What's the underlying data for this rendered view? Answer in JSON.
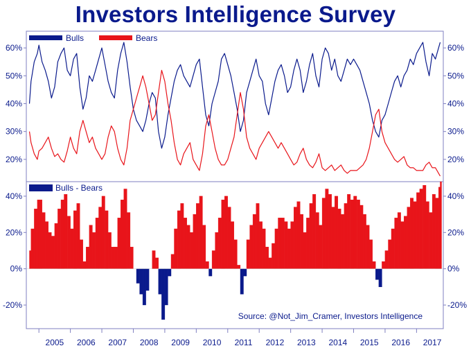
{
  "title": "Investors Intelligence Survey",
  "source": "Source: @Not_Jim_Cramer, Investors Intelligence",
  "colors": {
    "title": "#0a1a8c",
    "bulls": "#0a1a8c",
    "bears": "#e8141a",
    "spread_positive": "#e8141a",
    "spread_negative": "#0a1a8c",
    "frame": "#7f7fc0",
    "tick_text": "#0a1a8c"
  },
  "chart_data": [
    {
      "type": "line",
      "legend": "top-left",
      "x_tick_labels": [
        "2005",
        "2006",
        "2007",
        "2008",
        "2009",
        "2010",
        "2011",
        "2012",
        "2013",
        "2014",
        "2015",
        "2016",
        "2017"
      ],
      "xlim": [
        2004.6,
        2017.85
      ],
      "y_tick_labels": [
        "20%",
        "30%",
        "40%",
        "50%",
        "60%"
      ],
      "ylim": [
        12,
        66
      ],
      "series": [
        {
          "name": "Bulls",
          "x": [
            2004.7,
            2004.75,
            2004.85,
            2004.95,
            2005.0,
            2005.1,
            2005.2,
            2005.3,
            2005.4,
            2005.5,
            2005.6,
            2005.7,
            2005.8,
            2005.9,
            2006.0,
            2006.1,
            2006.2,
            2006.3,
            2006.4,
            2006.5,
            2006.6,
            2006.7,
            2006.8,
            2006.9,
            2007.0,
            2007.1,
            2007.2,
            2007.3,
            2007.4,
            2007.5,
            2007.6,
            2007.7,
            2007.8,
            2007.9,
            2008.0,
            2008.1,
            2008.2,
            2008.3,
            2008.4,
            2008.5,
            2008.6,
            2008.7,
            2008.8,
            2008.9,
            2009.0,
            2009.1,
            2009.2,
            2009.3,
            2009.4,
            2009.5,
            2009.6,
            2009.7,
            2009.8,
            2009.9,
            2010.0,
            2010.1,
            2010.2,
            2010.3,
            2010.4,
            2010.5,
            2010.6,
            2010.7,
            2010.8,
            2010.9,
            2011.0,
            2011.1,
            2011.2,
            2011.3,
            2011.4,
            2011.5,
            2011.6,
            2011.7,
            2011.8,
            2011.9,
            2012.0,
            2012.1,
            2012.2,
            2012.3,
            2012.4,
            2012.5,
            2012.6,
            2012.7,
            2012.8,
            2012.9,
            2013.0,
            2013.1,
            2013.2,
            2013.3,
            2013.4,
            2013.5,
            2013.6,
            2013.7,
            2013.8,
            2013.9,
            2014.0,
            2014.1,
            2014.2,
            2014.3,
            2014.4,
            2014.5,
            2014.6,
            2014.7,
            2014.8,
            2014.9,
            2015.0,
            2015.1,
            2015.2,
            2015.3,
            2015.4,
            2015.5,
            2015.6,
            2015.7,
            2015.8,
            2015.9,
            2016.0,
            2016.1,
            2016.2,
            2016.3,
            2016.4,
            2016.5,
            2016.6,
            2016.7,
            2016.8,
            2016.9,
            2017.0,
            2017.1,
            2017.2,
            2017.3,
            2017.4,
            2017.5,
            2017.6,
            2017.7,
            2017.75
          ],
          "values": [
            40,
            48,
            55,
            58,
            61,
            55,
            52,
            48,
            42,
            46,
            55,
            58,
            60,
            52,
            50,
            56,
            58,
            46,
            38,
            42,
            50,
            48,
            52,
            56,
            60,
            54,
            48,
            44,
            42,
            52,
            58,
            62,
            55,
            46,
            38,
            34,
            32,
            30,
            34,
            40,
            44,
            42,
            30,
            24,
            28,
            36,
            42,
            48,
            52,
            54,
            50,
            48,
            46,
            50,
            54,
            56,
            46,
            36,
            32,
            40,
            44,
            48,
            56,
            58,
            54,
            50,
            44,
            38,
            30,
            34,
            44,
            48,
            52,
            56,
            50,
            48,
            40,
            36,
            42,
            48,
            52,
            54,
            50,
            44,
            46,
            52,
            56,
            52,
            44,
            48,
            54,
            58,
            50,
            46,
            56,
            60,
            58,
            52,
            56,
            50,
            48,
            52,
            56,
            54,
            56,
            54,
            52,
            48,
            44,
            40,
            34,
            30,
            28,
            34,
            36,
            40,
            44,
            48,
            50,
            46,
            50,
            52,
            56,
            54,
            58,
            60,
            62,
            55,
            50,
            58,
            56,
            60,
            62
          ]
        },
        {
          "name": "Bears",
          "x": [
            2004.7,
            2004.75,
            2004.85,
            2004.95,
            2005.0,
            2005.1,
            2005.2,
            2005.3,
            2005.4,
            2005.5,
            2005.6,
            2005.7,
            2005.8,
            2005.9,
            2006.0,
            2006.1,
            2006.2,
            2006.3,
            2006.4,
            2006.5,
            2006.6,
            2006.7,
            2006.8,
            2006.9,
            2007.0,
            2007.1,
            2007.2,
            2007.3,
            2007.4,
            2007.5,
            2007.6,
            2007.7,
            2007.8,
            2007.9,
            2008.0,
            2008.1,
            2008.2,
            2008.3,
            2008.4,
            2008.5,
            2008.6,
            2008.7,
            2008.8,
            2008.9,
            2009.0,
            2009.1,
            2009.2,
            2009.3,
            2009.4,
            2009.5,
            2009.6,
            2009.7,
            2009.8,
            2009.9,
            2010.0,
            2010.1,
            2010.2,
            2010.3,
            2010.4,
            2010.5,
            2010.6,
            2010.7,
            2010.8,
            2010.9,
            2011.0,
            2011.1,
            2011.2,
            2011.3,
            2011.4,
            2011.5,
            2011.6,
            2011.7,
            2011.8,
            2011.9,
            2012.0,
            2012.1,
            2012.2,
            2012.3,
            2012.4,
            2012.5,
            2012.6,
            2012.7,
            2012.8,
            2012.9,
            2013.0,
            2013.1,
            2013.2,
            2013.3,
            2013.4,
            2013.5,
            2013.6,
            2013.7,
            2013.8,
            2013.9,
            2014.0,
            2014.1,
            2014.2,
            2014.3,
            2014.4,
            2014.5,
            2014.6,
            2014.7,
            2014.8,
            2014.9,
            2015.0,
            2015.1,
            2015.2,
            2015.3,
            2015.4,
            2015.5,
            2015.6,
            2015.7,
            2015.8,
            2015.9,
            2016.0,
            2016.1,
            2016.2,
            2016.3,
            2016.4,
            2016.5,
            2016.6,
            2016.7,
            2016.8,
            2016.9,
            2017.0,
            2017.1,
            2017.2,
            2017.3,
            2017.4,
            2017.5,
            2017.6,
            2017.7,
            2017.75
          ],
          "values": [
            30,
            26,
            22,
            20,
            23,
            24,
            26,
            28,
            24,
            21,
            22,
            20,
            19,
            23,
            28,
            24,
            22,
            30,
            34,
            30,
            26,
            28,
            24,
            22,
            20,
            22,
            28,
            32,
            30,
            24,
            20,
            18,
            24,
            34,
            38,
            42,
            46,
            50,
            46,
            40,
            34,
            36,
            44,
            52,
            48,
            40,
            34,
            26,
            20,
            18,
            22,
            24,
            26,
            20,
            18,
            16,
            22,
            32,
            36,
            30,
            24,
            20,
            18,
            18,
            20,
            24,
            28,
            36,
            44,
            38,
            28,
            24,
            22,
            20,
            24,
            26,
            28,
            30,
            28,
            26,
            24,
            26,
            24,
            22,
            20,
            18,
            19,
            22,
            24,
            20,
            18,
            17,
            19,
            22,
            17,
            16,
            17,
            18,
            16,
            17,
            18,
            16,
            15,
            16,
            16,
            16,
            17,
            18,
            20,
            24,
            30,
            36,
            38,
            30,
            26,
            24,
            22,
            20,
            19,
            20,
            21,
            18,
            17,
            17,
            16,
            16,
            16,
            18,
            19,
            17,
            17,
            15,
            14
          ]
        }
      ]
    },
    {
      "type": "area",
      "legend": "top-left",
      "x_tick_labels": [
        "2005",
        "2006",
        "2007",
        "2008",
        "2009",
        "2010",
        "2011",
        "2012",
        "2013",
        "2014",
        "2015",
        "2016",
        "2017"
      ],
      "xlim": [
        2004.6,
        2017.85
      ],
      "y_tick_labels": [
        "-20%",
        "0%",
        "20%",
        "40%"
      ],
      "ylim": [
        -33,
        48
      ],
      "series": [
        {
          "name": "Bulls - Bears",
          "x": [
            2004.7,
            2004.75,
            2004.85,
            2004.95,
            2005.0,
            2005.1,
            2005.2,
            2005.3,
            2005.4,
            2005.5,
            2005.6,
            2005.7,
            2005.8,
            2005.9,
            2006.0,
            2006.1,
            2006.2,
            2006.3,
            2006.4,
            2006.5,
            2006.6,
            2006.7,
            2006.8,
            2006.9,
            2007.0,
            2007.1,
            2007.2,
            2007.3,
            2007.4,
            2007.5,
            2007.6,
            2007.7,
            2007.8,
            2007.9,
            2008.0,
            2008.1,
            2008.2,
            2008.3,
            2008.4,
            2008.5,
            2008.6,
            2008.7,
            2008.8,
            2008.9,
            2009.0,
            2009.1,
            2009.2,
            2009.3,
            2009.4,
            2009.5,
            2009.6,
            2009.7,
            2009.8,
            2009.9,
            2010.0,
            2010.1,
            2010.2,
            2010.3,
            2010.4,
            2010.5,
            2010.6,
            2010.7,
            2010.8,
            2010.9,
            2011.0,
            2011.1,
            2011.2,
            2011.3,
            2011.4,
            2011.5,
            2011.6,
            2011.7,
            2011.8,
            2011.9,
            2012.0,
            2012.1,
            2012.2,
            2012.3,
            2012.4,
            2012.5,
            2012.6,
            2012.7,
            2012.8,
            2012.9,
            2013.0,
            2013.1,
            2013.2,
            2013.3,
            2013.4,
            2013.5,
            2013.6,
            2013.7,
            2013.8,
            2013.9,
            2014.0,
            2014.1,
            2014.2,
            2014.3,
            2014.4,
            2014.5,
            2014.6,
            2014.7,
            2014.8,
            2014.9,
            2015.0,
            2015.1,
            2015.2,
            2015.3,
            2015.4,
            2015.5,
            2015.6,
            2015.7,
            2015.8,
            2015.9,
            2016.0,
            2016.1,
            2016.2,
            2016.3,
            2016.4,
            2016.5,
            2016.6,
            2016.7,
            2016.8,
            2016.9,
            2017.0,
            2017.1,
            2017.2,
            2017.3,
            2017.4,
            2017.5,
            2017.6,
            2017.7,
            2017.75
          ],
          "values": [
            10,
            22,
            33,
            38,
            38,
            31,
            26,
            20,
            18,
            25,
            33,
            38,
            41,
            29,
            22,
            32,
            36,
            16,
            4,
            12,
            24,
            20,
            28,
            34,
            40,
            32,
            20,
            12,
            12,
            28,
            38,
            44,
            31,
            12,
            0,
            -8,
            -14,
            -20,
            -12,
            0,
            10,
            6,
            -14,
            -28,
            -20,
            -4,
            8,
            22,
            32,
            36,
            28,
            24,
            20,
            30,
            36,
            40,
            24,
            4,
            -4,
            10,
            20,
            28,
            38,
            40,
            34,
            26,
            16,
            2,
            -14,
            -4,
            16,
            24,
            30,
            36,
            26,
            22,
            12,
            6,
            14,
            22,
            28,
            28,
            26,
            22,
            26,
            34,
            37,
            30,
            20,
            28,
            36,
            41,
            31,
            24,
            39,
            44,
            41,
            34,
            40,
            33,
            30,
            36,
            41,
            38,
            40,
            38,
            35,
            30,
            24,
            16,
            4,
            -6,
            -10,
            4,
            10,
            16,
            22,
            28,
            31,
            26,
            29,
            34,
            39,
            37,
            42,
            44,
            46,
            37,
            31,
            41,
            39,
            45,
            48
          ]
        }
      ]
    }
  ]
}
